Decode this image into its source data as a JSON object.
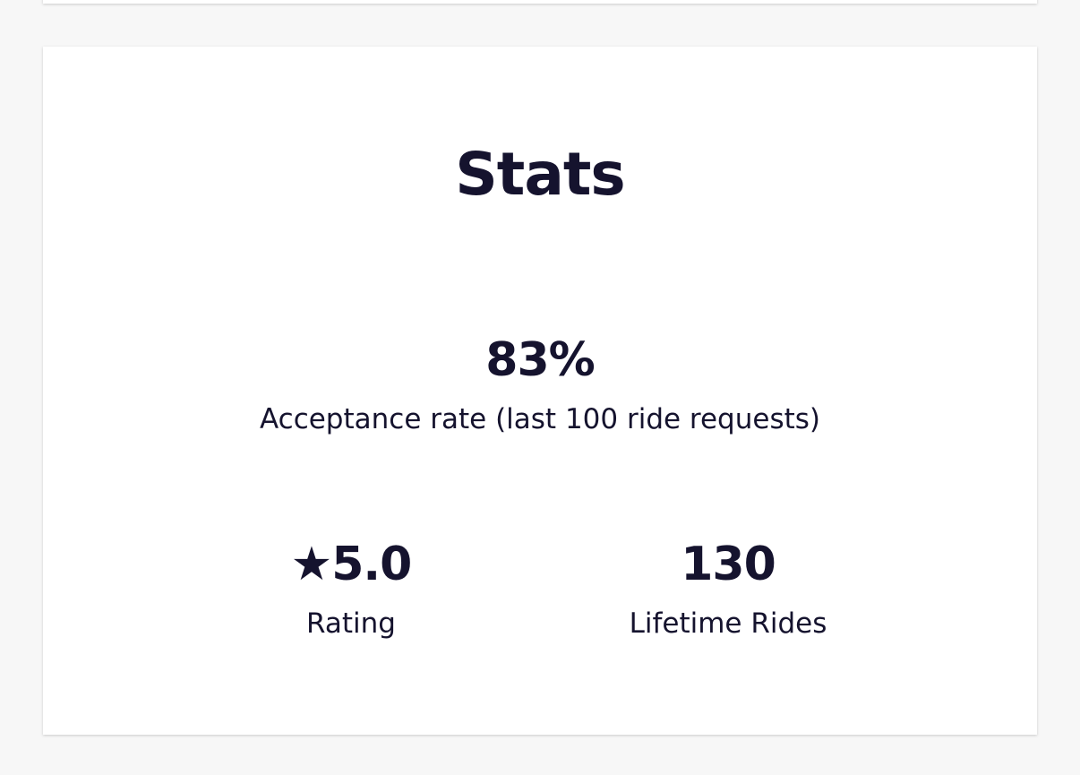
{
  "title": "Stats",
  "acceptance": {
    "value": "83%",
    "label": "Acceptance rate (last 100 ride requests)"
  },
  "stats": [
    {
      "value": "★5.0",
      "label": "Rating"
    },
    {
      "value": "130",
      "label": "Lifetime Rides"
    }
  ]
}
